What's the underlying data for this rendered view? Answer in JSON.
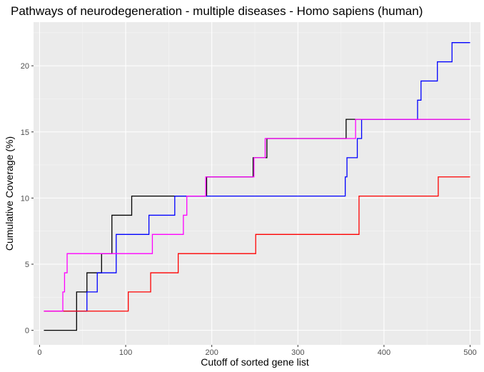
{
  "chart_data": {
    "type": "line",
    "step": true,
    "title": "Pathways of neurodegeneration - multiple diseases - Homo sapiens (human)",
    "xlabel": "Cutoff of sorted gene list",
    "ylabel": "Cumulative Coverage (%)",
    "xlim": [
      -7,
      512
    ],
    "ylim": [
      -1.1,
      23.3
    ],
    "xticks": [
      0,
      100,
      200,
      300,
      400,
      500
    ],
    "yticks": [
      0,
      5,
      10,
      15,
      20
    ],
    "grid": true,
    "legend": "none",
    "series": [
      {
        "color": "#000000",
        "points": [
          [
            5,
            0
          ],
          [
            43,
            0
          ],
          [
            43,
            2.9
          ],
          [
            55,
            2.9
          ],
          [
            55,
            4.35
          ],
          [
            72,
            4.35
          ],
          [
            72,
            5.8
          ],
          [
            84,
            5.8
          ],
          [
            84,
            8.7
          ],
          [
            107,
            8.7
          ],
          [
            107,
            10.15
          ],
          [
            194,
            10.15
          ],
          [
            194,
            11.6
          ],
          [
            248,
            11.6
          ],
          [
            248,
            13.05
          ],
          [
            264,
            13.05
          ],
          [
            264,
            14.5
          ],
          [
            356,
            14.5
          ],
          [
            356,
            15.95
          ],
          [
            500,
            15.95
          ]
        ]
      },
      {
        "color": "#0000ff",
        "points": [
          [
            5,
            1.45
          ],
          [
            55,
            1.45
          ],
          [
            55,
            2.9
          ],
          [
            67,
            2.9
          ],
          [
            67,
            4.35
          ],
          [
            89,
            4.35
          ],
          [
            89,
            7.25
          ],
          [
            127,
            7.25
          ],
          [
            127,
            8.7
          ],
          [
            157,
            8.7
          ],
          [
            157,
            10.15
          ],
          [
            355,
            10.15
          ],
          [
            355,
            11.6
          ],
          [
            357,
            11.6
          ],
          [
            357,
            13.05
          ],
          [
            369,
            13.05
          ],
          [
            369,
            14.5
          ],
          [
            374,
            14.5
          ],
          [
            374,
            15.95
          ],
          [
            439,
            15.95
          ],
          [
            439,
            17.4
          ],
          [
            443,
            17.4
          ],
          [
            443,
            18.85
          ],
          [
            462,
            18.85
          ],
          [
            462,
            20.3
          ],
          [
            479,
            20.3
          ],
          [
            479,
            21.75
          ],
          [
            500,
            21.75
          ]
        ]
      },
      {
        "color": "#ff0000",
        "points": [
          [
            5,
            1.45
          ],
          [
            103,
            1.45
          ],
          [
            103,
            2.9
          ],
          [
            129,
            2.9
          ],
          [
            129,
            4.35
          ],
          [
            161,
            4.35
          ],
          [
            161,
            5.8
          ],
          [
            251,
            5.8
          ],
          [
            251,
            7.25
          ],
          [
            371,
            7.25
          ],
          [
            371,
            10.15
          ],
          [
            463,
            10.15
          ],
          [
            463,
            11.6
          ],
          [
            500,
            11.6
          ]
        ]
      },
      {
        "color": "#ff00ff",
        "points": [
          [
            5,
            1.45
          ],
          [
            27,
            1.45
          ],
          [
            27,
            2.9
          ],
          [
            29,
            2.9
          ],
          [
            29,
            4.35
          ],
          [
            32,
            4.35
          ],
          [
            32,
            5.8
          ],
          [
            131,
            5.8
          ],
          [
            131,
            7.25
          ],
          [
            167,
            7.25
          ],
          [
            167,
            8.7
          ],
          [
            171,
            8.7
          ],
          [
            171,
            10.15
          ],
          [
            193,
            10.15
          ],
          [
            193,
            11.6
          ],
          [
            249,
            11.6
          ],
          [
            249,
            13.05
          ],
          [
            262,
            13.05
          ],
          [
            262,
            14.5
          ],
          [
            367,
            14.5
          ],
          [
            367,
            15.95
          ],
          [
            500,
            15.95
          ]
        ]
      }
    ]
  }
}
